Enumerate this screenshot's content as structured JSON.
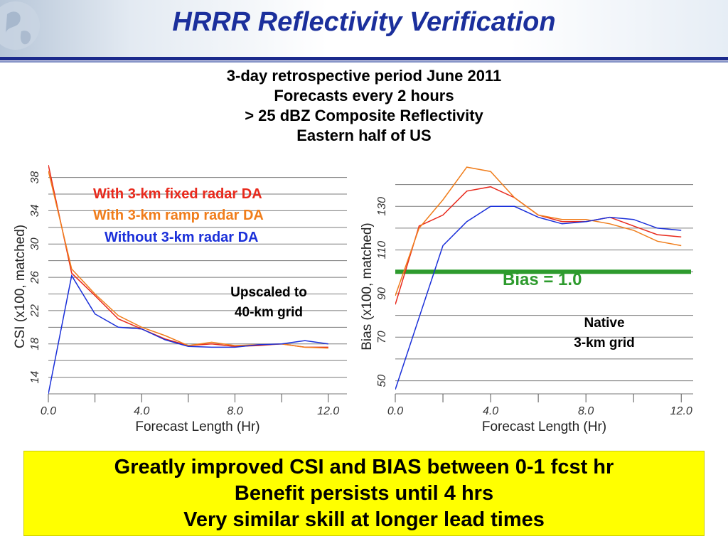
{
  "slide": {
    "title": "HRRR Reflectivity Verification",
    "subtitle_lines": [
      "3-day retrospective period June 2011",
      "Forecasts every 2 hours",
      "> 25 dBZ Composite Reflectivity",
      "Eastern half of US"
    ],
    "summary_lines": [
      "Greatly improved CSI and BIAS between 0-1 fcst hr",
      "Benefit persists until 4 hrs",
      "Very similar skill at longer lead times"
    ],
    "legend": [
      {
        "label": "With 3-km fixed radar DA",
        "color": "#e8291c"
      },
      {
        "label": "With 3-km ramp radar DA",
        "color": "#f07d1b"
      },
      {
        "label": "Without 3-km radar DA",
        "color": "#1a2fd9"
      }
    ],
    "annotations": {
      "csi_grid": [
        "Upscaled to",
        "40-km grid"
      ],
      "bias_grid": [
        "Native",
        "3-km grid"
      ],
      "bias_reference": "Bias = 1.0"
    },
    "colors": {
      "title": "#1b2f9c",
      "reference_line": "#2e9b2e",
      "summary_bg": "#ffff00"
    }
  },
  "chart_data": [
    {
      "type": "line",
      "name": "csi",
      "xlabel": "Forecast Length (Hr)",
      "ylabel": "CSI (x100, matched)",
      "xlim": [
        0,
        12.8
      ],
      "ylim": [
        12,
        39.5
      ],
      "xticks": [
        0,
        4,
        8,
        12
      ],
      "xtick_labels": [
        "0.0",
        "4.0",
        "8.0",
        "12.0"
      ],
      "yticks": [
        14,
        18,
        22,
        26,
        30,
        34,
        38
      ],
      "ytick_labels": [
        "14",
        "18",
        "22",
        "26",
        "30",
        "34",
        "38"
      ],
      "grid": true,
      "x": [
        0,
        1,
        2,
        3,
        4,
        5,
        6,
        7,
        8,
        9,
        10,
        11,
        12
      ],
      "series": [
        {
          "name": "With 3-km fixed radar DA",
          "color": "#e8291c",
          "values": [
            39.5,
            26.5,
            23.8,
            21.0,
            19.8,
            18.6,
            17.8,
            18.0,
            17.7,
            17.8,
            18.0,
            17.6,
            17.6
          ]
        },
        {
          "name": "With 3-km ramp radar DA",
          "color": "#f07d1b",
          "values": [
            38.8,
            27.0,
            24.0,
            21.4,
            20.0,
            19.0,
            17.8,
            18.2,
            17.8,
            17.9,
            18.0,
            17.6,
            17.5
          ]
        },
        {
          "name": "Without 3-km radar DA",
          "color": "#1a2fd9",
          "values": [
            12.0,
            26.2,
            21.6,
            20.0,
            19.8,
            18.5,
            17.7,
            17.6,
            17.6,
            17.9,
            18.0,
            18.4,
            18.0
          ]
        }
      ]
    },
    {
      "type": "line",
      "name": "bias",
      "xlabel": "Forecast Length (Hr)",
      "ylabel": "Bias (x100, matched)",
      "xlim": [
        0,
        12.5
      ],
      "ylim": [
        44,
        149
      ],
      "xticks": [
        0,
        4,
        8,
        12
      ],
      "xtick_labels": [
        "0.0",
        "4.0",
        "8.0",
        "12.0"
      ],
      "yticks": [
        50,
        70,
        90,
        110,
        130
      ],
      "ytick_labels": [
        "50",
        "70",
        "90",
        "110",
        "130"
      ],
      "grid": true,
      "reference_line": {
        "y": 100,
        "color": "#2e9b2e"
      },
      "x": [
        0,
        1,
        2,
        3,
        4,
        5,
        6,
        7,
        8,
        9,
        10,
        11,
        12
      ],
      "series": [
        {
          "name": "With 3-km fixed radar DA",
          "color": "#e8291c",
          "values": [
            85,
            121,
            126,
            137,
            139,
            134,
            126,
            123,
            123,
            125,
            121,
            117,
            116
          ]
        },
        {
          "name": "With 3-km ramp radar DA",
          "color": "#f07d1b",
          "values": [
            89,
            120,
            133,
            148,
            146,
            134,
            126,
            124,
            124,
            122,
            119,
            114,
            112
          ]
        },
        {
          "name": "Without 3-km radar DA",
          "color": "#1a2fd9",
          "values": [
            46,
            79,
            112,
            123,
            130,
            130,
            125,
            122,
            123,
            125,
            124,
            120,
            119
          ]
        }
      ]
    }
  ]
}
